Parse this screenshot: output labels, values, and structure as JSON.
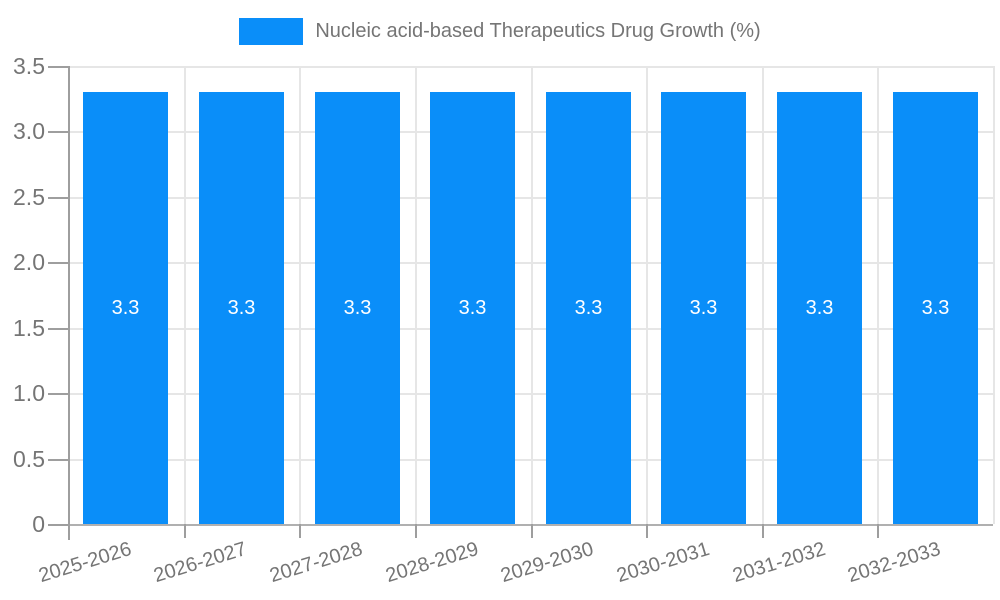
{
  "legend": {
    "label": "Nucleic acid-based Therapeutics Drug Growth (%)"
  },
  "colors": {
    "bar": "#0a8ef9",
    "axis_text": "#757575",
    "grid_line": "#e6e6e6",
    "axis_line": "#9e9e9e",
    "baseline": "#b0b0b0",
    "bar_label": "#ffffff",
    "background": "#ffffff"
  },
  "chart_data": {
    "type": "bar",
    "title": "Nucleic acid-based Therapeutics Drug Growth (%)",
    "categories": [
      "2025-2026",
      "2026-2027",
      "2027-2028",
      "2028-2029",
      "2029-2030",
      "2030-2031",
      "2031-2032",
      "2032-2033"
    ],
    "values": [
      3.3,
      3.3,
      3.3,
      3.3,
      3.3,
      3.3,
      3.3,
      3.3
    ],
    "value_labels": [
      "3.3",
      "3.3",
      "3.3",
      "3.3",
      "3.3",
      "3.3",
      "3.3",
      "3.3"
    ],
    "xlabel": "",
    "ylabel": "",
    "ylim": [
      0,
      3.5
    ],
    "yticks": [
      0,
      0.5,
      1,
      1.5,
      2,
      2.5,
      3,
      3.5
    ],
    "ytick_labels": [
      "0",
      "0.5",
      "1.0",
      "1.5",
      "2.0",
      "2.5",
      "3.0",
      "3.5"
    ],
    "grid": true,
    "legend_position": "top",
    "legend_entries": [
      "Nucleic acid-based Therapeutics Drug Growth (%)"
    ]
  }
}
